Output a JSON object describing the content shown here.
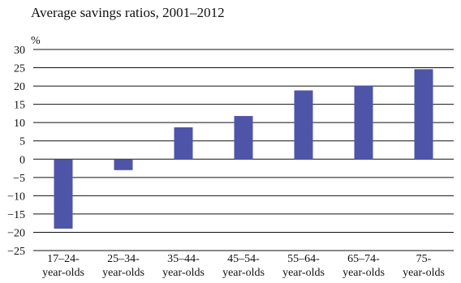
{
  "chart_data": {
    "type": "bar",
    "title": "Average savings ratios, 2001–2012",
    "ylabel": "%",
    "xlabel": "",
    "ylim": [
      -25,
      30
    ],
    "yticks": [
      30,
      25,
      20,
      15,
      10,
      5,
      0,
      -5,
      -10,
      -15,
      -20,
      -25
    ],
    "ytick_labels": [
      "30",
      "25",
      "20",
      "15",
      "10",
      "5",
      "0",
      "−5",
      "−10",
      "−15",
      "−20",
      "−25"
    ],
    "grid": true,
    "categories": [
      [
        "17–24-",
        "year-olds"
      ],
      [
        "25–34-",
        "year-olds"
      ],
      [
        "35–44-",
        "year-olds"
      ],
      [
        "45–54-",
        "year-olds"
      ],
      [
        "55–64-",
        "year-olds"
      ],
      [
        "65–74-",
        "year-olds"
      ],
      [
        "75-",
        "year-olds"
      ]
    ],
    "values": [
      -19,
      -3,
      8.7,
      11.8,
      18.8,
      20.1,
      24.6
    ],
    "bar_color": "#4e54a8"
  }
}
